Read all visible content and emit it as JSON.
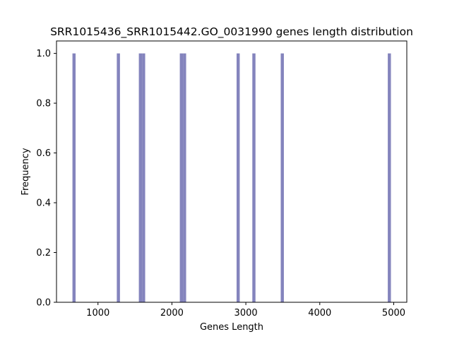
{
  "chart_data": {
    "type": "bar",
    "title": "SRR1015436_SRR1015442.GO_0031990 genes length distribution",
    "xlabel": "Genes Length",
    "ylabel": "Frequency",
    "xlim": [
      439,
      5177
    ],
    "ylim": [
      0,
      1.05
    ],
    "x_ticks": [
      1000,
      2000,
      3000,
      4000,
      5000
    ],
    "y_ticks": [
      0.0,
      0.2,
      0.4,
      0.6,
      0.8,
      1.0
    ],
    "x_tick_labels": [
      "1000",
      "2000",
      "3000",
      "4000",
      "5000"
    ],
    "y_tick_labels": [
      "0.0",
      "0.2",
      "0.4",
      "0.6",
      "0.8",
      "1.0"
    ],
    "bin_width": 42.6,
    "bars": [
      {
        "x": 676,
        "value": 1
      },
      {
        "x": 1276,
        "value": 1
      },
      {
        "x": 1574,
        "value": 1
      },
      {
        "x": 1617,
        "value": 1
      },
      {
        "x": 2128,
        "value": 1
      },
      {
        "x": 2171,
        "value": 1
      },
      {
        "x": 2896,
        "value": 1
      },
      {
        "x": 3109,
        "value": 1
      },
      {
        "x": 3493,
        "value": 1
      },
      {
        "x": 4941,
        "value": 1
      }
    ],
    "bar_color": "#8484bd",
    "grid": false,
    "legend": "none"
  }
}
